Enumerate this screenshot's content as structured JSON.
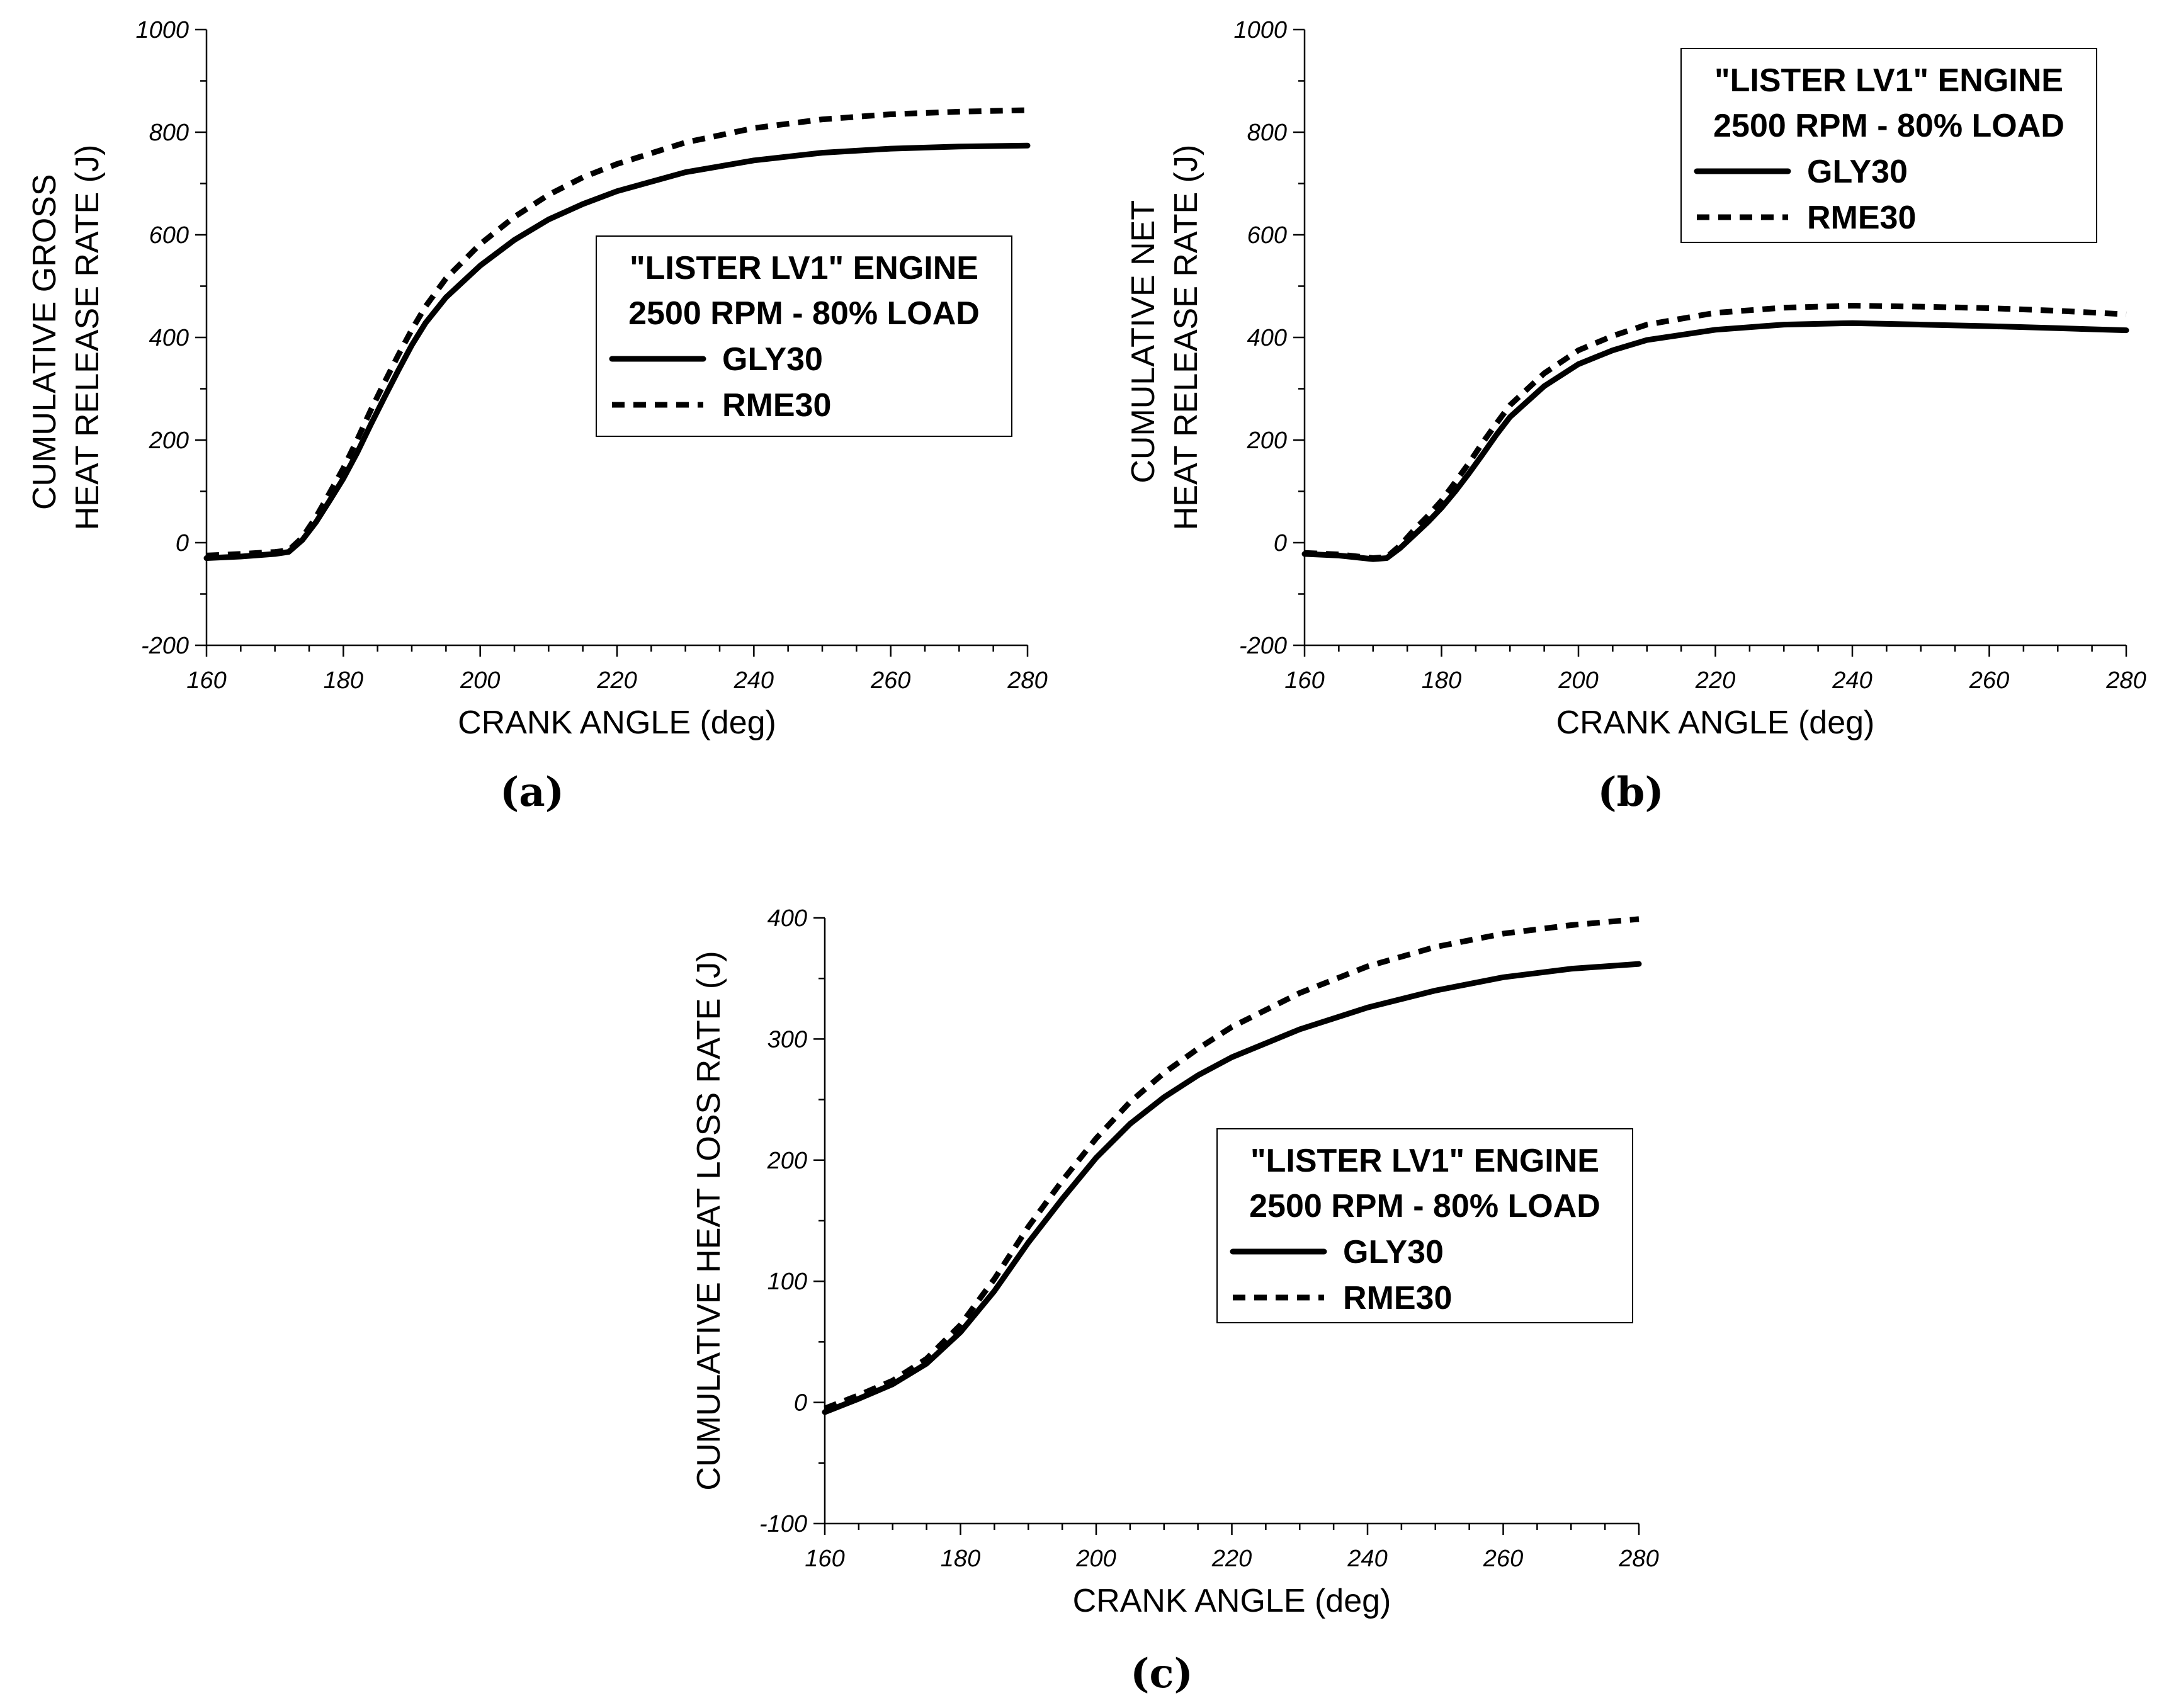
{
  "figure": {
    "panel_labels": [
      "(a)",
      "(b)",
      "(c)"
    ]
  },
  "chart_data": [
    {
      "type": "line",
      "panel": "(a)",
      "title": "",
      "xlabel": "CRANK ANGLE (deg)",
      "ylabel_lines": [
        "CUMULATIVE GROSS",
        "HEAT RELEASE RATE (J)"
      ],
      "xlim": [
        160,
        280
      ],
      "ylim": [
        -200,
        1000
      ],
      "xticks": [
        160,
        180,
        200,
        220,
        240,
        260,
        280
      ],
      "yticks": [
        -200,
        0,
        200,
        400,
        600,
        800,
        1000
      ],
      "legend": {
        "placement": "center-right",
        "title_lines": [
          "\"LISTER LV1\" ENGINE",
          "2500 RPM - 80% LOAD"
        ]
      },
      "series": [
        {
          "name": "GLY30",
          "style": "solid",
          "x": [
            160,
            165,
            170,
            172,
            174,
            176,
            178,
            180,
            182,
            184,
            186,
            188,
            190,
            192,
            195,
            200,
            205,
            210,
            215,
            220,
            230,
            240,
            250,
            260,
            270,
            280
          ],
          "y": [
            -30,
            -27,
            -22,
            -18,
            5,
            40,
            82,
            125,
            175,
            230,
            283,
            335,
            385,
            428,
            478,
            540,
            590,
            630,
            660,
            685,
            722,
            745,
            760,
            768,
            772,
            774
          ]
        },
        {
          "name": "RME30",
          "style": "dashed",
          "x": [
            160,
            165,
            170,
            172,
            174,
            176,
            178,
            180,
            182,
            184,
            186,
            188,
            190,
            192,
            195,
            200,
            205,
            210,
            215,
            220,
            230,
            240,
            250,
            260,
            270,
            280
          ],
          "y": [
            -25,
            -22,
            -18,
            -15,
            10,
            50,
            97,
            145,
            200,
            258,
            312,
            365,
            415,
            460,
            515,
            582,
            635,
            678,
            712,
            738,
            780,
            808,
            825,
            835,
            840,
            843
          ]
        }
      ]
    },
    {
      "type": "line",
      "panel": "(b)",
      "title": "",
      "xlabel": "CRANK ANGLE (deg)",
      "ylabel_lines": [
        "CUMULATIVE NET",
        "HEAT RELEASE RATE (J)"
      ],
      "xlim": [
        160,
        280
      ],
      "ylim": [
        -200,
        1000
      ],
      "xticks": [
        160,
        180,
        200,
        220,
        240,
        260,
        280
      ],
      "yticks": [
        -200,
        0,
        200,
        400,
        600,
        800,
        1000
      ],
      "legend": {
        "placement": "top-right",
        "title_lines": [
          "\"LISTER LV1\" ENGINE",
          "2500 RPM - 80% LOAD"
        ]
      },
      "series": [
        {
          "name": "GLY30",
          "style": "solid",
          "x": [
            160,
            165,
            170,
            172,
            174,
            176,
            178,
            180,
            182,
            184,
            186,
            188,
            190,
            195,
            200,
            205,
            210,
            220,
            230,
            240,
            250,
            260,
            270,
            280
          ],
          "y": [
            -22,
            -25,
            -32,
            -30,
            -10,
            15,
            40,
            68,
            100,
            135,
            172,
            210,
            245,
            305,
            348,
            375,
            395,
            415,
            425,
            428,
            425,
            422,
            418,
            414
          ],
          "_note": "near-flat after 230 deg"
        },
        {
          "name": "RME30",
          "style": "dashed",
          "x": [
            160,
            165,
            170,
            172,
            174,
            176,
            178,
            180,
            182,
            184,
            186,
            188,
            190,
            195,
            200,
            205,
            210,
            220,
            230,
            240,
            250,
            260,
            270,
            280
          ],
          "y": [
            -20,
            -23,
            -30,
            -28,
            -5,
            25,
            52,
            82,
            118,
            155,
            195,
            232,
            268,
            330,
            375,
            403,
            425,
            448,
            458,
            462,
            460,
            457,
            452,
            445
          ]
        }
      ]
    },
    {
      "type": "line",
      "panel": "(c)",
      "title": "",
      "xlabel": "CRANK ANGLE (deg)",
      "ylabel_lines": [
        "CUMULATIVE HEAT LOSS RATE (J)"
      ],
      "xlim": [
        160,
        280
      ],
      "ylim": [
        -100,
        400
      ],
      "xticks": [
        160,
        180,
        200,
        220,
        240,
        260,
        280
      ],
      "yticks": [
        -100,
        0,
        100,
        200,
        300,
        400
      ],
      "legend": {
        "placement": "center-right",
        "title_lines": [
          "\"LISTER LV1\" ENGINE",
          "2500 RPM - 80% LOAD"
        ]
      },
      "series": [
        {
          "name": "GLY30",
          "style": "solid",
          "x": [
            160,
            165,
            170,
            175,
            180,
            185,
            190,
            195,
            200,
            205,
            210,
            215,
            220,
            230,
            240,
            250,
            260,
            270,
            280
          ],
          "y": [
            -8,
            3,
            15,
            32,
            58,
            92,
            132,
            168,
            202,
            230,
            252,
            270,
            285,
            308,
            326,
            340,
            351,
            358,
            362
          ]
        },
        {
          "name": "RME30",
          "style": "dashed",
          "x": [
            160,
            165,
            170,
            175,
            180,
            185,
            190,
            195,
            200,
            205,
            210,
            215,
            220,
            230,
            240,
            250,
            260,
            270,
            280
          ],
          "y": [
            -5,
            6,
            18,
            36,
            64,
            102,
            145,
            183,
            218,
            248,
            272,
            292,
            310,
            338,
            360,
            376,
            387,
            394,
            399
          ]
        }
      ]
    }
  ]
}
